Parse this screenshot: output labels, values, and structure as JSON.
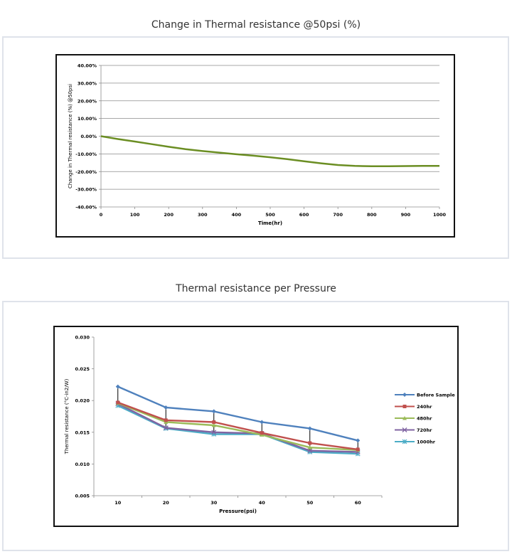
{
  "captions": {
    "chart1": "Change in Thermal resistance @50psi (%)",
    "chart2": "Thermal resistance  per Pressure"
  },
  "chart_data": [
    {
      "type": "line",
      "title": "",
      "xlabel": "Time(hr)",
      "ylabel": "Change in Thermal resistance (%) @50psi",
      "x_ticks": [
        "0",
        "100",
        "200",
        "300",
        "400",
        "500",
        "600",
        "700",
        "800",
        "900",
        "1000"
      ],
      "y_ticks": [
        "40.00%",
        "30.00%",
        "20.00%",
        "10.00%",
        "0.00%",
        "-10.00%",
        "-20.00%",
        "-30.00%",
        "-40.00%"
      ],
      "xlim": [
        0,
        1000
      ],
      "ylim": [
        -40,
        40
      ],
      "grid": "horizontal",
      "legend": "none",
      "colors": {
        "line": "#6b8e23"
      },
      "series": [
        {
          "x": [
            0,
            50,
            100,
            150,
            200,
            250,
            300,
            350,
            400,
            450,
            500,
            550,
            600,
            650,
            700,
            750,
            800,
            850,
            900,
            950,
            1000
          ],
          "values": [
            0,
            -1.6,
            -3.0,
            -4.5,
            -6.0,
            -7.3,
            -8.4,
            -9.3,
            -10.2,
            -11.0,
            -11.9,
            -13.0,
            -14.2,
            -15.3,
            -16.3,
            -16.8,
            -17.0,
            -17.0,
            -16.9,
            -16.8,
            -16.8
          ]
        }
      ]
    },
    {
      "type": "line",
      "title": "",
      "xlabel": "Pressure(psi)",
      "ylabel": "Thermal resistance (°C-in2/W)",
      "categories": [
        "10",
        "20",
        "30",
        "40",
        "50",
        "60"
      ],
      "y_ticks": [
        "0.030",
        "0.025",
        "0.020",
        "0.015",
        "0.010",
        "0.005"
      ],
      "ylim": [
        0.005,
        0.03
      ],
      "grid": "none",
      "legend": "right",
      "series": [
        {
          "name": "Before Sample",
          "color": "#4f81bd",
          "marker": "diamond",
          "values": [
            0.0222,
            0.0189,
            0.0183,
            0.0166,
            0.0156,
            0.0137
          ]
        },
        {
          "name": "240hr",
          "color": "#c0504d",
          "marker": "square",
          "values": [
            0.0197,
            0.0169,
            0.0166,
            0.0149,
            0.0133,
            0.0123
          ]
        },
        {
          "name": "480hr",
          "color": "#9bbb59",
          "marker": "triangle",
          "values": [
            0.0196,
            0.0166,
            0.0161,
            0.0146,
            0.0126,
            0.0122
          ]
        },
        {
          "name": "720hr",
          "color": "#8064a2",
          "marker": "x",
          "values": [
            0.0195,
            0.0157,
            0.015,
            0.0148,
            0.0121,
            0.0119
          ]
        },
        {
          "name": "1000hr",
          "color": "#4bacc6",
          "marker": "star",
          "values": [
            0.0192,
            0.0156,
            0.0147,
            0.0147,
            0.0119,
            0.0116
          ]
        }
      ]
    }
  ]
}
